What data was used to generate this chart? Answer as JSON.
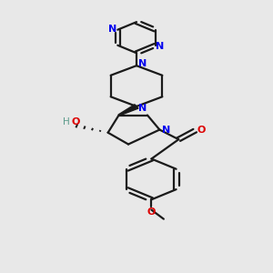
{
  "bg_color": "#e8e8e8",
  "bond_color": "#1a1a1a",
  "N_color": "#0000ee",
  "O_color": "#dd0000",
  "H_color": "#5a9a8a",
  "line_width": 1.6,
  "figsize": [
    3.0,
    3.0
  ],
  "dpi": 100,
  "xlim": [
    0,
    10
  ],
  "ylim": [
    0,
    14
  ]
}
